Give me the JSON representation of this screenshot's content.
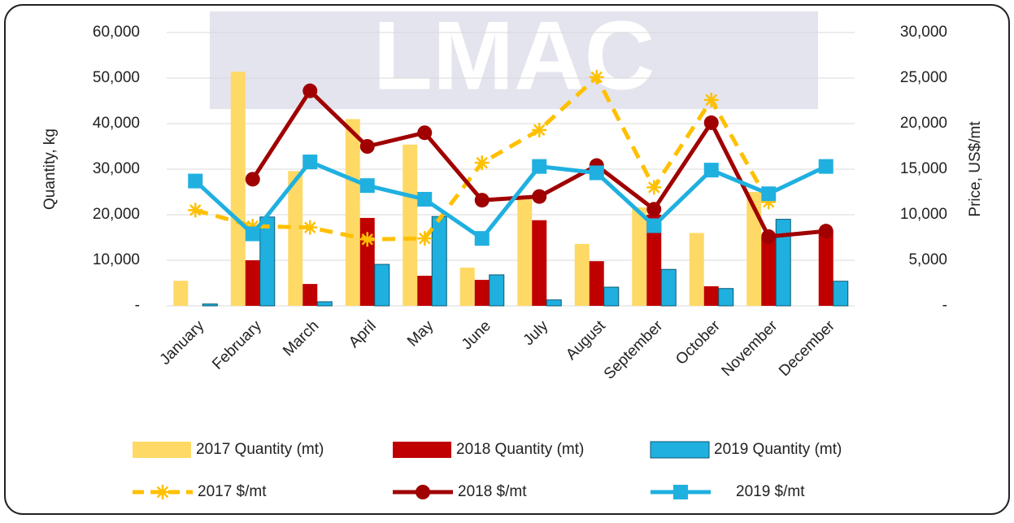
{
  "chart_data": {
    "type": "bar-line",
    "watermark": "LMAC",
    "ylabel": "Quantity, kg",
    "y2label": "Price, US$/mt",
    "categories": [
      "January",
      "February",
      "March",
      "April",
      "May",
      "June",
      "July",
      "August",
      "September",
      "October",
      "November",
      "December"
    ],
    "ylim": [
      0,
      60000
    ],
    "yticks": [
      {
        "value": 0,
        "label": "-"
      },
      {
        "value": 10000,
        "label": "10,000"
      },
      {
        "value": 20000,
        "label": "20,000"
      },
      {
        "value": 30000,
        "label": "30,000"
      },
      {
        "value": 40000,
        "label": "40,000"
      },
      {
        "value": 50000,
        "label": "50,000"
      },
      {
        "value": 60000,
        "label": "60,000"
      }
    ],
    "y2lim": [
      0,
      30000
    ],
    "y2ticks": [
      {
        "value": 0,
        "label": "-"
      },
      {
        "value": 5000,
        "label": "5,000"
      },
      {
        "value": 10000,
        "label": "10,000"
      },
      {
        "value": 15000,
        "label": "15,000"
      },
      {
        "value": 20000,
        "label": "20,000"
      },
      {
        "value": 25000,
        "label": "25,000"
      },
      {
        "value": 30000,
        "label": "30,000"
      }
    ],
    "grid": true,
    "series": [
      {
        "name": "2017 Quantity  (mt)",
        "type": "bar",
        "color": "#ffd966",
        "values": [
          5500,
          51400,
          29600,
          41000,
          35400,
          8400,
          23400,
          13600,
          21600,
          16000,
          25000,
          null
        ]
      },
      {
        "name": "2018 Quantity  (mt)",
        "type": "bar",
        "color": "#c00000",
        "values": [
          null,
          10000,
          4800,
          19300,
          6600,
          5700,
          18800,
          9800,
          20000,
          4300,
          15000,
          16300
        ]
      },
      {
        "name": "2019 Quantity  (mt)",
        "type": "bar",
        "color": "#1fb0e0",
        "values": [
          400,
          19500,
          900,
          9100,
          19600,
          6800,
          1300,
          4100,
          8000,
          3800,
          19000,
          5400
        ]
      },
      {
        "name": "2017 $/mt",
        "type": "line",
        "axis": "y2",
        "color": "#ffc000",
        "dashed": true,
        "marker": "star",
        "values": [
          10500,
          8750,
          8600,
          7300,
          7400,
          15700,
          19300,
          25100,
          13000,
          22600,
          11400,
          null
        ]
      },
      {
        "name": "2018 $/mt",
        "type": "line",
        "axis": "y2",
        "color": "#a00000",
        "dashed": false,
        "marker": "circle",
        "values": [
          null,
          13900,
          23600,
          17500,
          19000,
          11600,
          12000,
          15400,
          10600,
          20100,
          7600,
          8200
        ]
      },
      {
        "name": "2019 $/mt",
        "type": "line",
        "axis": "y2",
        "color": "#1fb0e0",
        "dashed": false,
        "marker": "square",
        "values": [
          13700,
          7900,
          15800,
          13200,
          11700,
          7400,
          15300,
          14600,
          8800,
          14900,
          12300,
          15300
        ]
      }
    ]
  }
}
